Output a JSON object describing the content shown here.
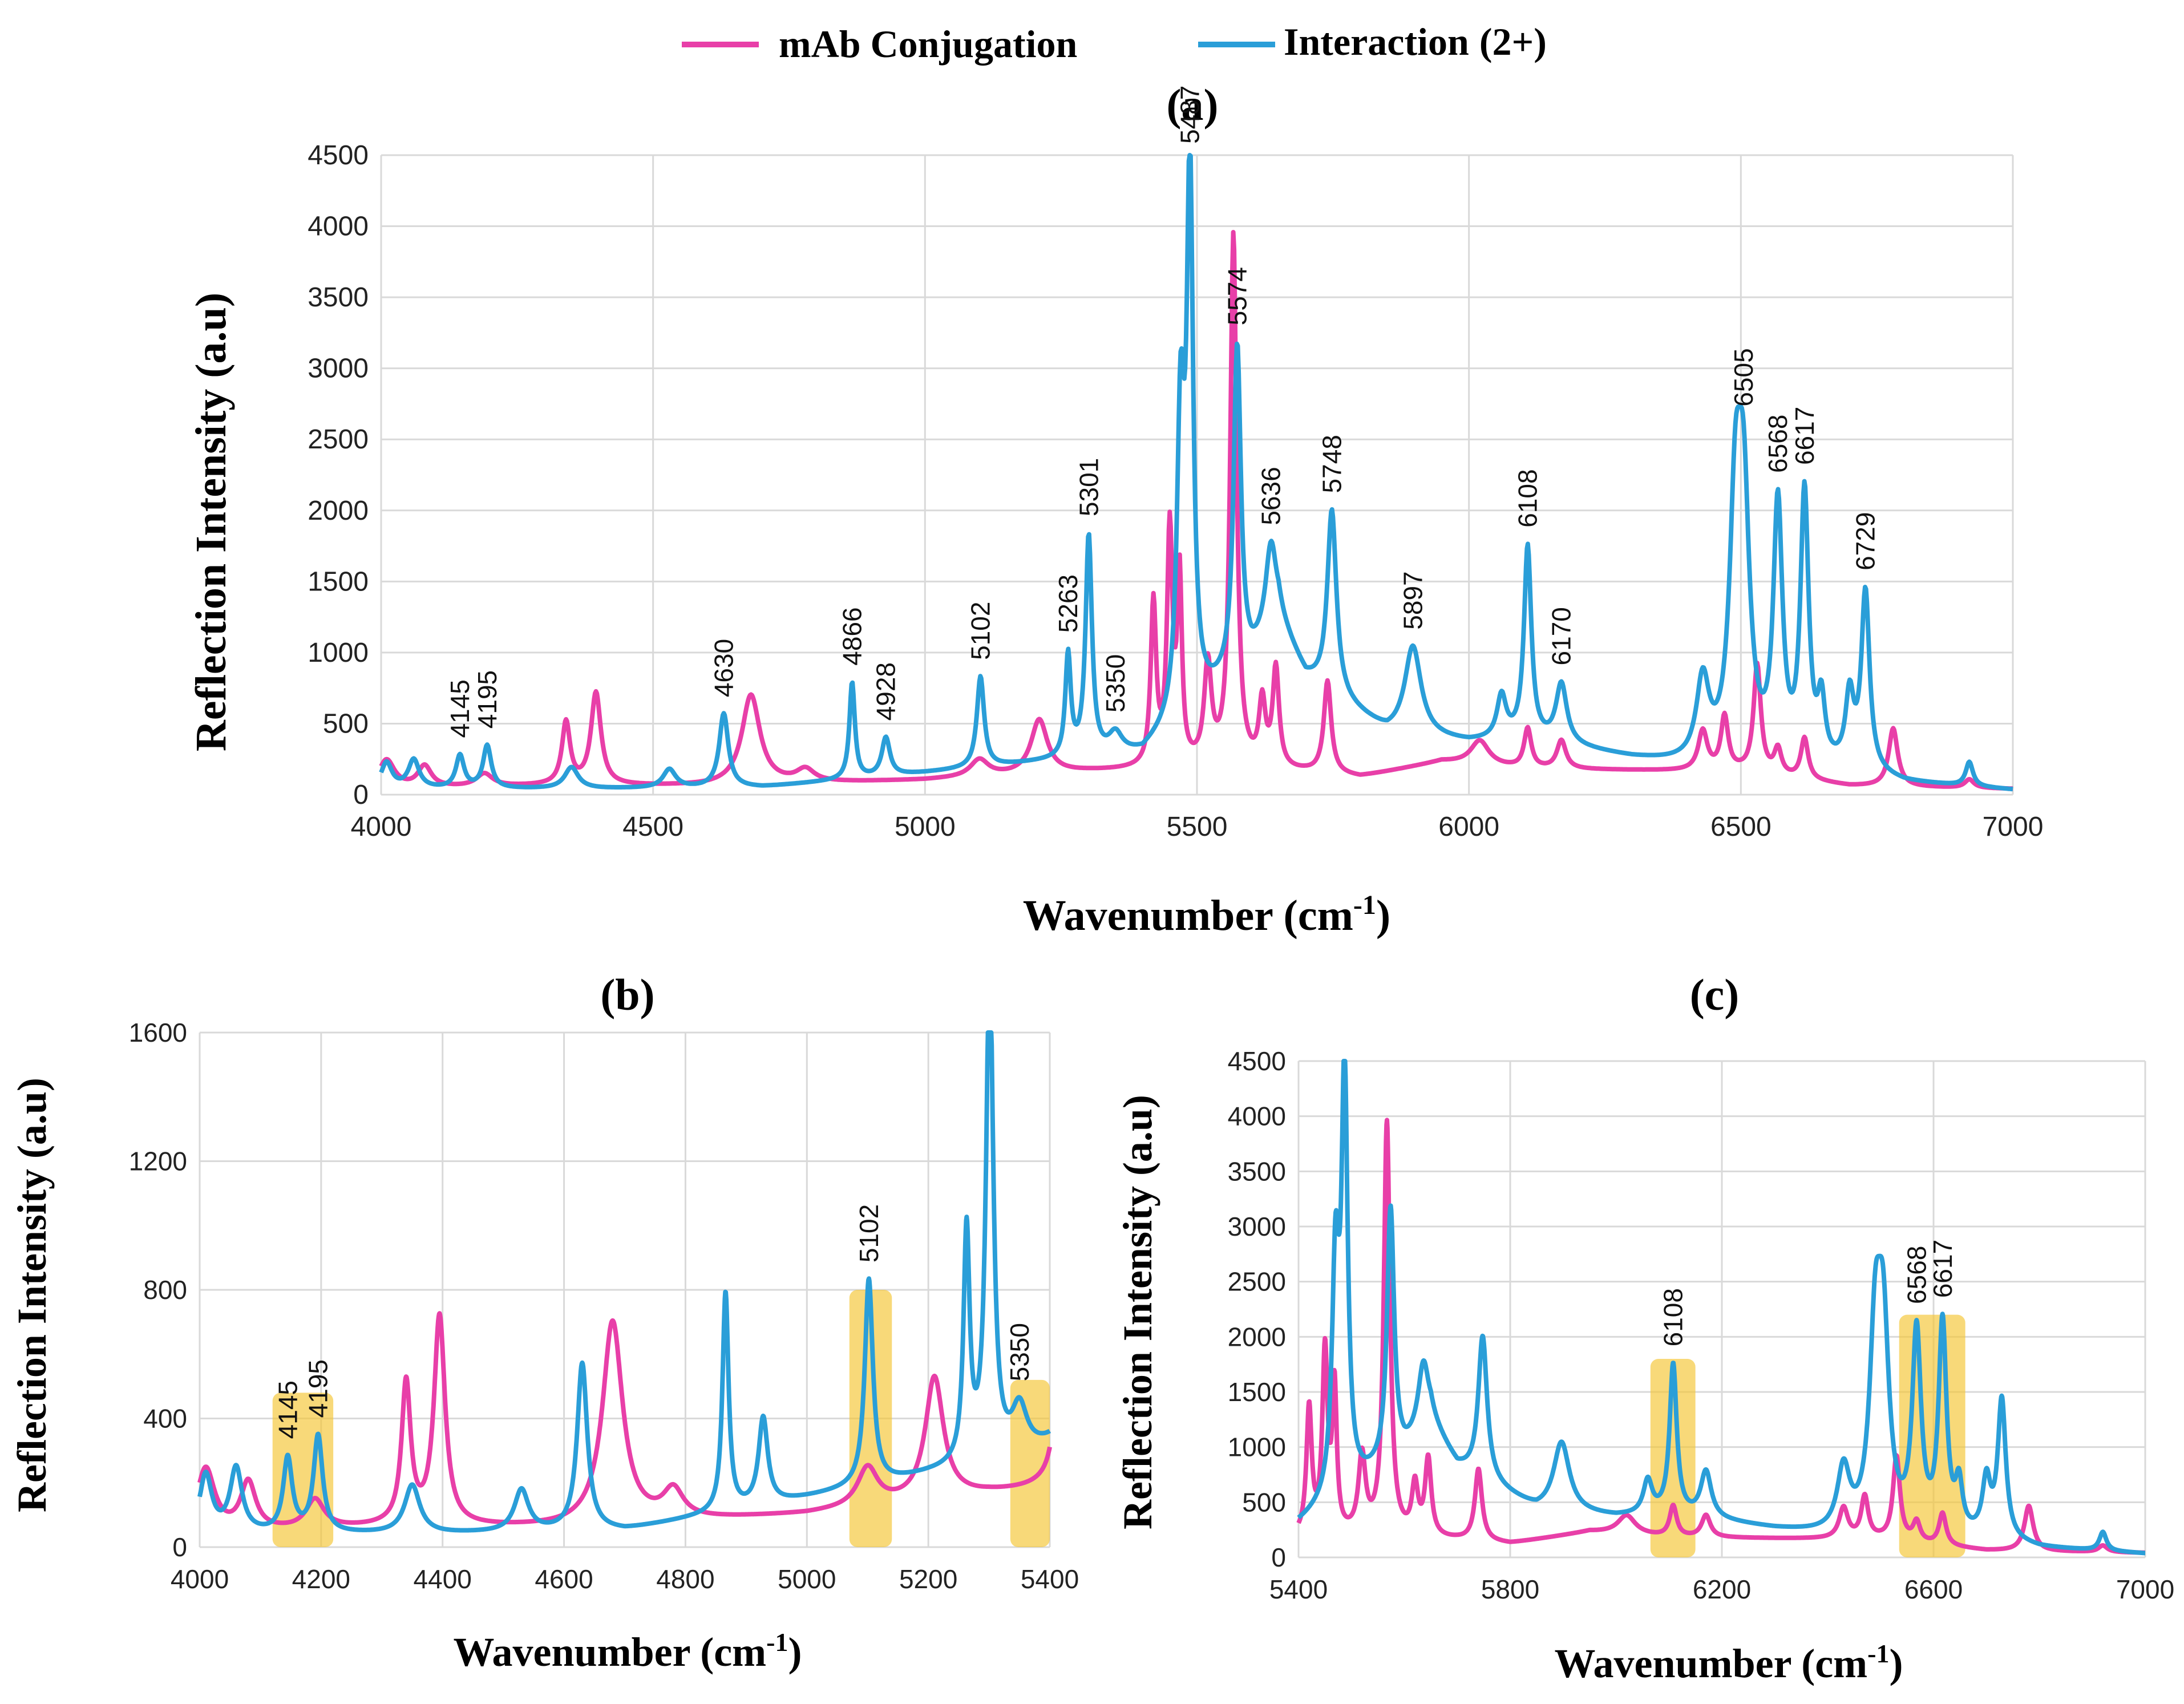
{
  "legend": {
    "entries": [
      {
        "name": "mAb Conjugation",
        "color": "#E83FA8"
      },
      {
        "name": "Interaction",
        "suffix": "(2+)",
        "color": "#2A9ED8"
      }
    ]
  },
  "chart_data": [
    {
      "id": "a",
      "type": "line",
      "title": "(a)",
      "xlabel": "Wavenumber (cm",
      "xlabel_sup": "-1",
      "xlabel_end": ")",
      "ylabel": "Reflection Intensity (a.u)",
      "xlim": [
        4000,
        7000
      ],
      "ylim": [
        0,
        4500
      ],
      "xticks": [
        4000,
        4500,
        5000,
        5500,
        6000,
        6500,
        7000
      ],
      "yticks": [
        0,
        500,
        1000,
        1500,
        2000,
        2500,
        3000,
        3500,
        4000,
        4500
      ],
      "series": [
        {
          "name": "mAb Conjugation",
          "color": "#E83FA8",
          "baseline": [
            [
              4000,
              40
            ],
            [
              4300,
              60
            ],
            [
              4600,
              60
            ],
            [
              5000,
              100
            ],
            [
              5300,
              160
            ],
            [
              5500,
              180
            ],
            [
              5700,
              150
            ],
            [
              5800,
              120
            ],
            [
              5950,
              230
            ],
            [
              6100,
              180
            ],
            [
              6300,
              170
            ],
            [
              6500,
              160
            ],
            [
              6700,
              60
            ],
            [
              7000,
              40
            ]
          ],
          "peaks": [
            [
              4010,
              200,
              18
            ],
            [
              4080,
              150,
              15
            ],
            [
              4190,
              90,
              18
            ],
            [
              4340,
              440,
              9
            ],
            [
              4395,
              650,
              11
            ],
            [
              4680,
              630,
              20
            ],
            [
              4780,
              90,
              20
            ],
            [
              5100,
              120,
              20
            ],
            [
              5210,
              380,
              18
            ],
            [
              5420,
              1150,
              6
            ],
            [
              5450,
              1650,
              6
            ],
            [
              5468,
              1300,
              5
            ],
            [
              5567,
              3750,
              7
            ],
            [
              5520,
              700,
              8
            ],
            [
              5620,
              450,
              7
            ],
            [
              5645,
              700,
              7
            ],
            [
              5740,
              650,
              8
            ],
            [
              6020,
              170,
              20
            ],
            [
              6108,
              280,
              8
            ],
            [
              6170,
              200,
              10
            ],
            [
              6430,
              280,
              10
            ],
            [
              6470,
              380,
              8
            ],
            [
              6530,
              760,
              8
            ],
            [
              6568,
              180,
              8
            ],
            [
              6617,
              290,
              8
            ],
            [
              6780,
              410,
              10
            ],
            [
              6920,
              60,
              10
            ]
          ]
        },
        {
          "name": "Interaction",
          "color": "#2A9ED8",
          "baseline": [
            [
              4000,
              40
            ],
            [
              4400,
              40
            ],
            [
              4700,
              50
            ],
            [
              5000,
              150
            ],
            [
              5200,
              220
            ],
            [
              5400,
              280
            ],
            [
              5500,
              600
            ],
            [
              5600,
              900
            ],
            [
              5650,
              1200
            ],
            [
              5700,
              800
            ],
            [
              5780,
              600
            ],
            [
              5850,
              420
            ],
            [
              6000,
              360
            ],
            [
              6100,
              380
            ],
            [
              6200,
              320
            ],
            [
              6300,
              250
            ],
            [
              6400,
              200
            ],
            [
              6500,
              180
            ],
            [
              6600,
              150
            ],
            [
              6700,
              160
            ],
            [
              6800,
              80
            ],
            [
              7000,
              30
            ]
          ],
          "peaks": [
            [
              4010,
              180,
              12
            ],
            [
              4060,
              200,
              12
            ],
            [
              4145,
              230,
              9
            ],
            [
              4195,
              300,
              9
            ],
            [
              4350,
              150,
              15
            ],
            [
              4530,
              130,
              14
            ],
            [
              4630,
              520,
              10
            ],
            [
              4866,
              680,
              6
            ],
            [
              4928,
              270,
              9
            ],
            [
              5102,
              640,
              8
            ],
            [
              5263,
              720,
              6
            ],
            [
              5301,
              1550,
              7
            ],
            [
              5350,
              140,
              15
            ],
            [
              5470,
              2050,
              8
            ],
            [
              5487,
              3700,
              7
            ],
            [
              5574,
              2300,
              8
            ],
            [
              5636,
              600,
              12
            ],
            [
              5748,
              1300,
              10
            ],
            [
              5897,
              630,
              18
            ],
            [
              6060,
              300,
              10
            ],
            [
              6108,
              1350,
              8
            ],
            [
              6170,
              420,
              12
            ],
            [
              6430,
              560,
              14
            ],
            [
              6490,
              1650,
              13
            ],
            [
              6505,
              1650,
              13
            ],
            [
              6568,
              1800,
              10
            ],
            [
              6617,
              1900,
              9
            ],
            [
              6648,
              420,
              8
            ],
            [
              6700,
              480,
              9
            ],
            [
              6729,
              1250,
              9
            ],
            [
              6920,
              170,
              8
            ]
          ]
        }
      ],
      "annotations": [
        "4145",
        "4195",
        "4630",
        "4866",
        "4928",
        "5102",
        "5263",
        "5301",
        "5350",
        "5487",
        "5574",
        "5636",
        "5748",
        "5897",
        "6108",
        "6170",
        "6505",
        "6568",
        "6617",
        "6729"
      ]
    },
    {
      "id": "b",
      "type": "line",
      "title": "(b)",
      "xlabel": "Wavenumber (cm",
      "xlabel_sup": "-1",
      "xlabel_end": ")",
      "ylabel": "Reflection Intensity (a.u)",
      "xlim": [
        4000,
        5400
      ],
      "ylim": [
        0,
        1600
      ],
      "xticks": [
        4000,
        4200,
        4400,
        4600,
        4800,
        5000,
        5200,
        5400
      ],
      "yticks": [
        0,
        400,
        800,
        1200,
        1600
      ],
      "annotations": [
        "4145",
        "4195",
        "5102",
        "5350"
      ],
      "highlights": [
        [
          4120,
          4220,
          0,
          480
        ],
        [
          5070,
          5140,
          0,
          800
        ],
        [
          5335,
          5400,
          0,
          520
        ]
      ]
    },
    {
      "id": "c",
      "type": "line",
      "title": "(c)",
      "xlabel": "Wavenumber (cm",
      "xlabel_sup": "-1",
      "xlabel_end": ")",
      "ylabel": "Reflection Intensity (a.u)",
      "xlim": [
        5400,
        7000
      ],
      "ylim": [
        0,
        4500
      ],
      "xticks": [
        5400,
        5800,
        6200,
        6600,
        7000
      ],
      "yticks": [
        0,
        500,
        1000,
        1500,
        2000,
        2500,
        3000,
        3500,
        4000,
        4500
      ],
      "annotations": [
        "6108",
        "6568",
        "6617"
      ],
      "highlights": [
        [
          6065,
          6150,
          0,
          1800
        ],
        [
          6535,
          6660,
          0,
          2200
        ]
      ]
    }
  ]
}
